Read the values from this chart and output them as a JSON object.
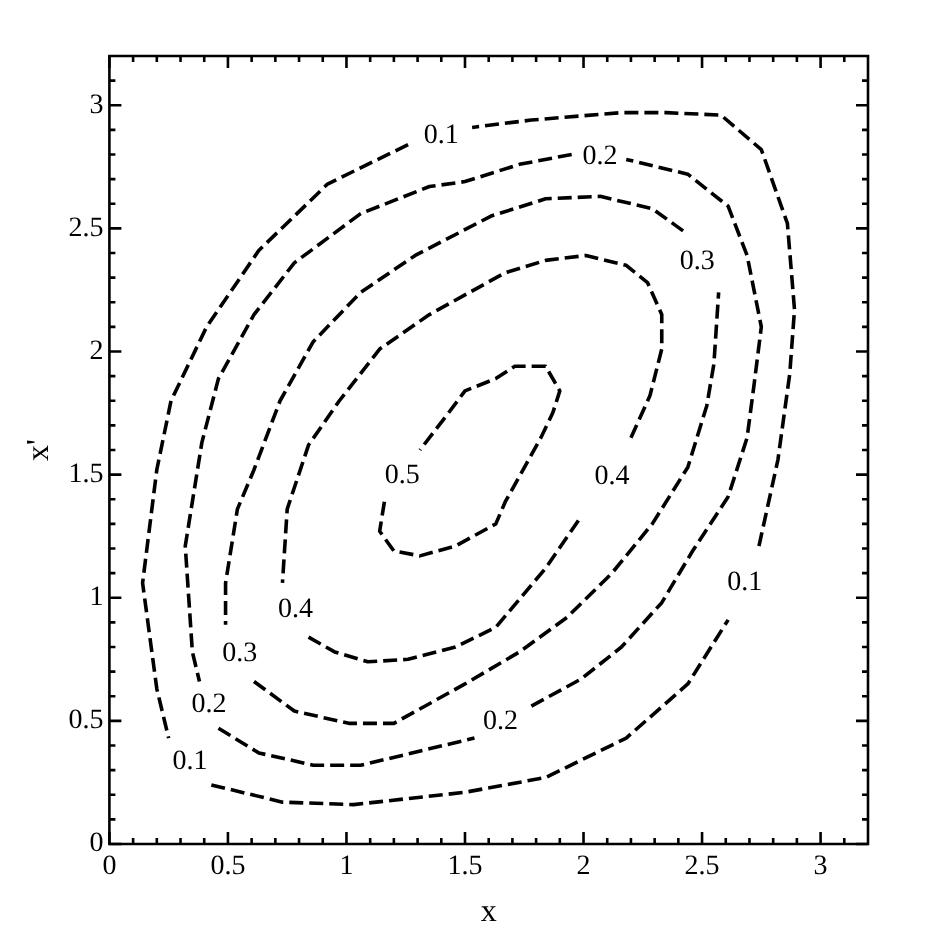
{
  "chart_data": {
    "type": "line",
    "xlabel": "x",
    "ylabel": "x'",
    "line_style": "dashed",
    "marker": "none",
    "grid": false,
    "legend": false,
    "xlim": [
      0,
      3.2
    ],
    "ylim": [
      0,
      3.2
    ],
    "xticks": [
      0,
      {
        "value": 0.1,
        "label": null
      },
      {
        "value": 0.2,
        "label": null
      },
      {
        "value": 0.3,
        "label": null
      },
      {
        "value": 0.4,
        "label": null
      },
      0.5,
      {
        "value": 0.6,
        "label": null
      },
      {
        "value": 0.7,
        "label": null
      },
      {
        "value": 0.8,
        "label": null
      },
      {
        "value": 0.9,
        "label": null
      },
      1,
      {
        "value": 1.1,
        "label": null
      },
      {
        "value": 1.2,
        "label": null
      },
      {
        "value": 1.3,
        "label": null
      },
      {
        "value": 1.4,
        "label": null
      },
      1.5,
      {
        "value": 1.6,
        "label": null
      },
      {
        "value": 1.7,
        "label": null
      },
      {
        "value": 1.8,
        "label": null
      },
      {
        "value": 1.9,
        "label": null
      },
      2,
      {
        "value": 2.1,
        "label": null
      },
      {
        "value": 2.2,
        "label": null
      },
      {
        "value": 2.3,
        "label": null
      },
      {
        "value": 2.4,
        "label": null
      },
      2.5,
      {
        "value": 2.6,
        "label": null
      },
      {
        "value": 2.7,
        "label": null
      },
      {
        "value": 2.8,
        "label": null
      },
      {
        "value": 2.9,
        "label": null
      },
      3,
      {
        "value": 3.1,
        "label": null
      }
    ],
    "yticks": [
      0,
      {
        "value": 0.1,
        "label": null
      },
      {
        "value": 0.2,
        "label": null
      },
      {
        "value": 0.3,
        "label": null
      },
      {
        "value": 0.4,
        "label": null
      },
      0.5,
      {
        "value": 0.6,
        "label": null
      },
      {
        "value": 0.7,
        "label": null
      },
      {
        "value": 0.8,
        "label": null
      },
      {
        "value": 0.9,
        "label": null
      },
      1,
      {
        "value": 1.1,
        "label": null
      },
      {
        "value": 1.2,
        "label": null
      },
      {
        "value": 1.3,
        "label": null
      },
      {
        "value": 1.4,
        "label": null
      },
      1.5,
      {
        "value": 1.6,
        "label": null
      },
      {
        "value": 1.7,
        "label": null
      },
      {
        "value": 1.8,
        "label": null
      },
      {
        "value": 1.9,
        "label": null
      },
      2,
      {
        "value": 2.1,
        "label": null
      },
      {
        "value": 2.2,
        "label": null
      },
      {
        "value": 2.3,
        "label": null
      },
      {
        "value": 2.4,
        "label": null
      },
      2.5,
      {
        "value": 2.6,
        "label": null
      },
      {
        "value": 2.7,
        "label": null
      },
      {
        "value": 2.8,
        "label": null
      },
      {
        "value": 2.9,
        "label": null
      },
      3,
      {
        "value": 3.1,
        "label": null
      }
    ],
    "series": [
      {
        "name": "0.1",
        "color": "#000000",
        "x": [
          0.43,
          0.73,
          1.03,
          1.5,
          1.84,
          2.18,
          2.44,
          2.61,
          2.68,
          2.74,
          2.82,
          2.87,
          2.89,
          2.86,
          2.75,
          2.58,
          2.35,
          2.16,
          1.78,
          1.53,
          1.4,
          1.26,
          0.92,
          0.63,
          0.41,
          0.26,
          0.2,
          0.14,
          0.2,
          0.25
        ],
        "values": [
          0.24,
          0.17,
          0.16,
          0.21,
          0.27,
          0.43,
          0.65,
          0.91,
          null,
          1.21,
          1.56,
          1.91,
          2.17,
          2.52,
          2.82,
          2.96,
          2.97,
          2.97,
          2.94,
          2.91,
          null,
          2.84,
          2.68,
          2.41,
          2.1,
          1.8,
          1.52,
          1.06,
          0.63,
          0.43
        ]
      },
      {
        "name": "0.2",
        "color": "#000000",
        "x": [
          0.46,
          0.63,
          0.86,
          1.06,
          1.54,
          1.65,
          1.78,
          1.99,
          2.16,
          2.33,
          2.46,
          2.61,
          2.69,
          2.72,
          2.75,
          2.69,
          2.61,
          2.44,
          2.18,
          2.07,
          1.95,
          1.73,
          1.5,
          1.35,
          1.06,
          0.78,
          0.61,
          0.46,
          0.39,
          0.32,
          0.35,
          0.38
        ],
        "values": [
          0.47,
          0.37,
          0.32,
          0.32,
          0.43,
          null,
          0.56,
          0.67,
          0.8,
          0.98,
          1.19,
          1.41,
          1.65,
          1.87,
          2.1,
          2.39,
          2.59,
          2.72,
          2.78,
          null,
          2.8,
          2.76,
          2.69,
          2.67,
          2.56,
          2.36,
          2.15,
          1.89,
          1.63,
          1.21,
          0.78,
          0.66
        ]
      },
      {
        "name": "0.3",
        "color": "#000000",
        "x": [
          0.61,
          0.78,
          1.01,
          1.2,
          1.5,
          1.73,
          1.93,
          2.12,
          2.29,
          2.44,
          2.52,
          2.55,
          2.57,
          2.48,
          2.42,
          2.29,
          2.07,
          1.84,
          1.61,
          1.29,
          1.06,
          0.86,
          0.72,
          0.61,
          0.54,
          0.49,
          0.49
        ],
        "values": [
          0.66,
          0.54,
          0.49,
          0.49,
          0.65,
          0.78,
          0.92,
          1.1,
          1.3,
          1.53,
          1.78,
          1.95,
          2.24,
          null,
          2.49,
          2.58,
          2.63,
          2.62,
          2.55,
          2.39,
          2.24,
          2.04,
          1.8,
          1.52,
          1.36,
          1.06,
          0.89
        ]
      },
      {
        "name": "0.4",
        "color": "#000000",
        "x": [
          0.84,
          0.95,
          1.09,
          1.26,
          1.46,
          1.63,
          1.84,
          1.99,
          2.12,
          2.2,
          2.28,
          2.33,
          2.33,
          2.27,
          2.18,
          2.01,
          1.84,
          1.67,
          1.5,
          1.35,
          1.14,
          0.97,
          0.84,
          0.75,
          0.73
        ],
        "values": [
          0.84,
          0.78,
          0.74,
          0.75,
          0.8,
          0.88,
          1.12,
          1.33,
          null,
          1.65,
          1.82,
          2.01,
          2.15,
          2.28,
          2.35,
          2.39,
          2.37,
          2.32,
          2.23,
          2.15,
          2.01,
          1.8,
          1.62,
          1.36,
          1.06
        ]
      },
      {
        "name": "0.5",
        "color": "#000000",
        "x": [
          1.16,
          1.14,
          1.2,
          1.31,
          1.46,
          1.63,
          1.67,
          1.82,
          1.87,
          1.9,
          1.84,
          1.71,
          1.63,
          1.5,
          1.43,
          1.31
        ],
        "values": [
          1.39,
          1.27,
          1.19,
          1.17,
          1.21,
          1.3,
          1.39,
          1.65,
          1.75,
          1.84,
          1.94,
          1.94,
          1.89,
          1.84,
          1.75,
          1.6
        ]
      }
    ]
  }
}
